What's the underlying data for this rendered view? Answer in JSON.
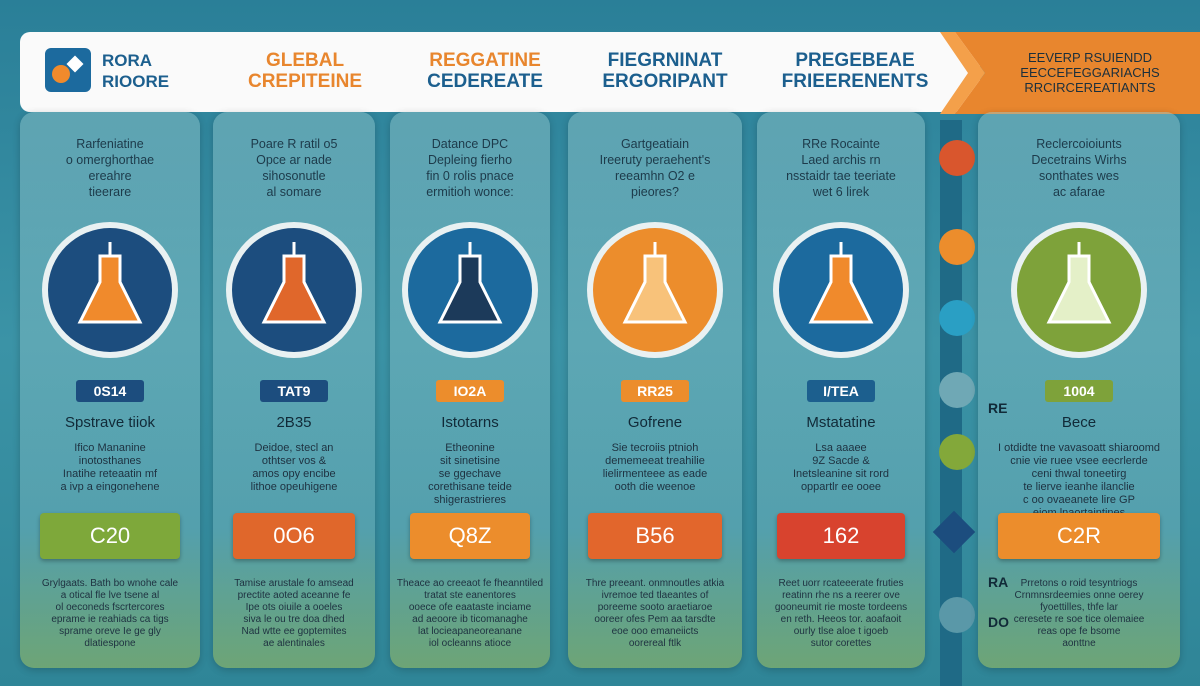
{
  "header": {
    "logo": [
      "RORA",
      "RIOORE"
    ],
    "tabs": [
      [
        "GLEBAL",
        "CREPITEINE"
      ],
      [
        "REGGATINE",
        "CEDEREATE"
      ],
      [
        "FIEGRNINAT",
        "ERGORIPANT"
      ],
      [
        "PREGEBEAE",
        "FRIEERENENTS"
      ]
    ],
    "banner": [
      "EEVERP RSUIENDD",
      "EECCEFEGGARIACHS",
      "RRCIRCEREATIANTS"
    ]
  },
  "columns": [
    {
      "intro": [
        "Rarfeniatine",
        "o omerghorthae",
        "ereahre",
        "tieerare"
      ],
      "badge": "0S14",
      "title": "Spstrave tiiok",
      "desc": [
        "Ifico Mananine",
        "inotosthanes",
        "Inatihe reteaatin mf",
        "a ivp a eingonehene"
      ],
      "value": "C20",
      "foot": [
        "Grylgaats. Bath bo wnohe cale",
        "a otical fle lve tsene al",
        "ol oeconeds fscrtercores",
        "eprame ie reahiads ca tigs",
        "sprame oreve Ie ge gly",
        "dlatiespone"
      ]
    },
    {
      "intro": [
        "Poare R ratil o5",
        "Opce ar nade",
        "sihosonutle",
        "al somare"
      ],
      "badge": "TAT9",
      "title": "2B35",
      "desc": [
        "Deidoe, stecl an",
        "othtser vos &",
        "amos opy encibe",
        "lithoe opeuhigene"
      ],
      "value": "0O6",
      "foot": [
        "Tamise arustale fo amsead",
        "prectite aoted aceanne fe",
        "Ipe ots oiuile a ooeles",
        "siva le ou tre doa dhed",
        "Nad wtte ee goptemites",
        "ae alentinales"
      ]
    },
    {
      "intro": [
        "Datance DPC",
        "Depleing fierho",
        "fin 0 rolis pnace",
        "ermitioh wonce:"
      ],
      "badge": "IO2A",
      "title": "Istotarns",
      "desc": [
        "Etheonine",
        "sit sinetisine",
        "se ggechave",
        "corethisane teide",
        "shigerastrieres"
      ],
      "value": "Q8Z",
      "foot": [
        "Theace ao creeaot fe fheanntiled",
        "tratat ste eanentores",
        "ooece ofe eaataste inciame",
        "ad aeoore ib ticomanaghe",
        "lat locieapaneoreanane",
        "iol ocleanns atioce"
      ]
    },
    {
      "intro": [
        "Gartgeatiain",
        "Ireeruty peraehent's",
        "reeamhn O2 e",
        "pieores?"
      ],
      "badge": "RR25",
      "title": "Gofrene",
      "desc": [
        "Sie tecroiis ptnioh",
        "dememeeat treahilie",
        "lielirmenteee as eade",
        "ooth die weenoe"
      ],
      "value": "B56",
      "foot": [
        "Thre preeant. onmnoutles atkia",
        "ivremoe ted tlaeantes of",
        "poreeme sooto araetiaroe",
        "ooreer ofes Pem aa tarsdte",
        "eoe ooo emaneiicts",
        "oorereal ftlk"
      ]
    },
    {
      "intro": [
        "RRe Rocainte",
        "Laed archis rn",
        "nsstaidr tae teeriate",
        "wet 6 lirek"
      ],
      "badge": "I/TEA",
      "title": "Mstatatine",
      "desc": [
        "Lsa aaaee",
        "9Z Sacde &",
        "Inetsleanine sit rord",
        "oppartlr ee ooee"
      ],
      "value": "162",
      "foot": [
        "Reet uorr rcateeerate fruties",
        "reatinn rhe ns a reerer ove",
        "gooneumit rie moste tordeens",
        "en reth. Heeos tor. aoafaoit",
        "ourly tlse aloe t igoeb",
        "sutor corettes"
      ]
    },
    {
      "intro": [
        "Reclercoioiunts",
        "Decetrains Wirhs",
        "sonthates wes",
        "ac afarae"
      ],
      "badge": "1004",
      "title": "Bece",
      "desc": [
        "I otdidte tne vavasoatt shiaroomd",
        "cnie vie ruee vsee eecrlerde",
        "ceni thwal toneetirg",
        "te lierve ieanhe ilanclie",
        "c oo ovaeanete lire GP",
        "eiom lnaortaintines"
      ],
      "value": "C2R",
      "foot": [
        "Prretons o roid tesyntriogs",
        "Crnmnsrdeemies onne oerey",
        "fyoettilles, thfe lar",
        "ceresete re soe tice olemaiee",
        "reas ope fe bsome",
        "aonttne"
      ]
    }
  ],
  "timeline_labels": [
    "RE",
    "RA",
    "DO"
  ]
}
